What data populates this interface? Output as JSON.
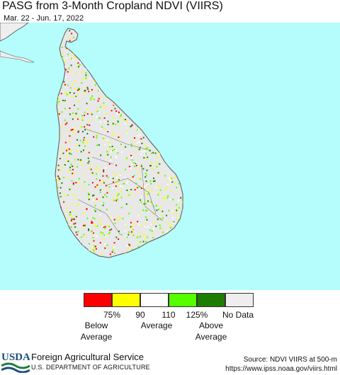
{
  "title": "PASG from 3-Month Cropland NDVI (VIIRS)",
  "subtitle": "Mar. 22 - Jun. 17, 2022",
  "legend": {
    "colors": [
      "#ff0000",
      "#ffff00",
      "#ffffff",
      "#55ff00",
      "#1e7d00",
      "#eeeeee"
    ],
    "ticks": [
      "75%",
      "90",
      "110",
      "125%",
      "No Data"
    ],
    "groups": [
      {
        "line1": "Below",
        "line2": "Average"
      },
      {
        "line1": "Average",
        "line2": ""
      },
      {
        "line1": "Above",
        "line2": "Average"
      }
    ]
  },
  "footer": {
    "logo_text": "USDA",
    "agency": "Foreign Agricultural Service",
    "department": "U.S. DEPARTMENT OF AGRICULTURE",
    "source": "Source: NDVI VIIRS at 500-m",
    "url": "https://www.ipss.noaa.gov/viirs.html"
  },
  "map_colors": {
    "ocean": "#b5fcfc",
    "land": "#e8e8e8",
    "india": "#eeeeee",
    "border": "#555555"
  }
}
